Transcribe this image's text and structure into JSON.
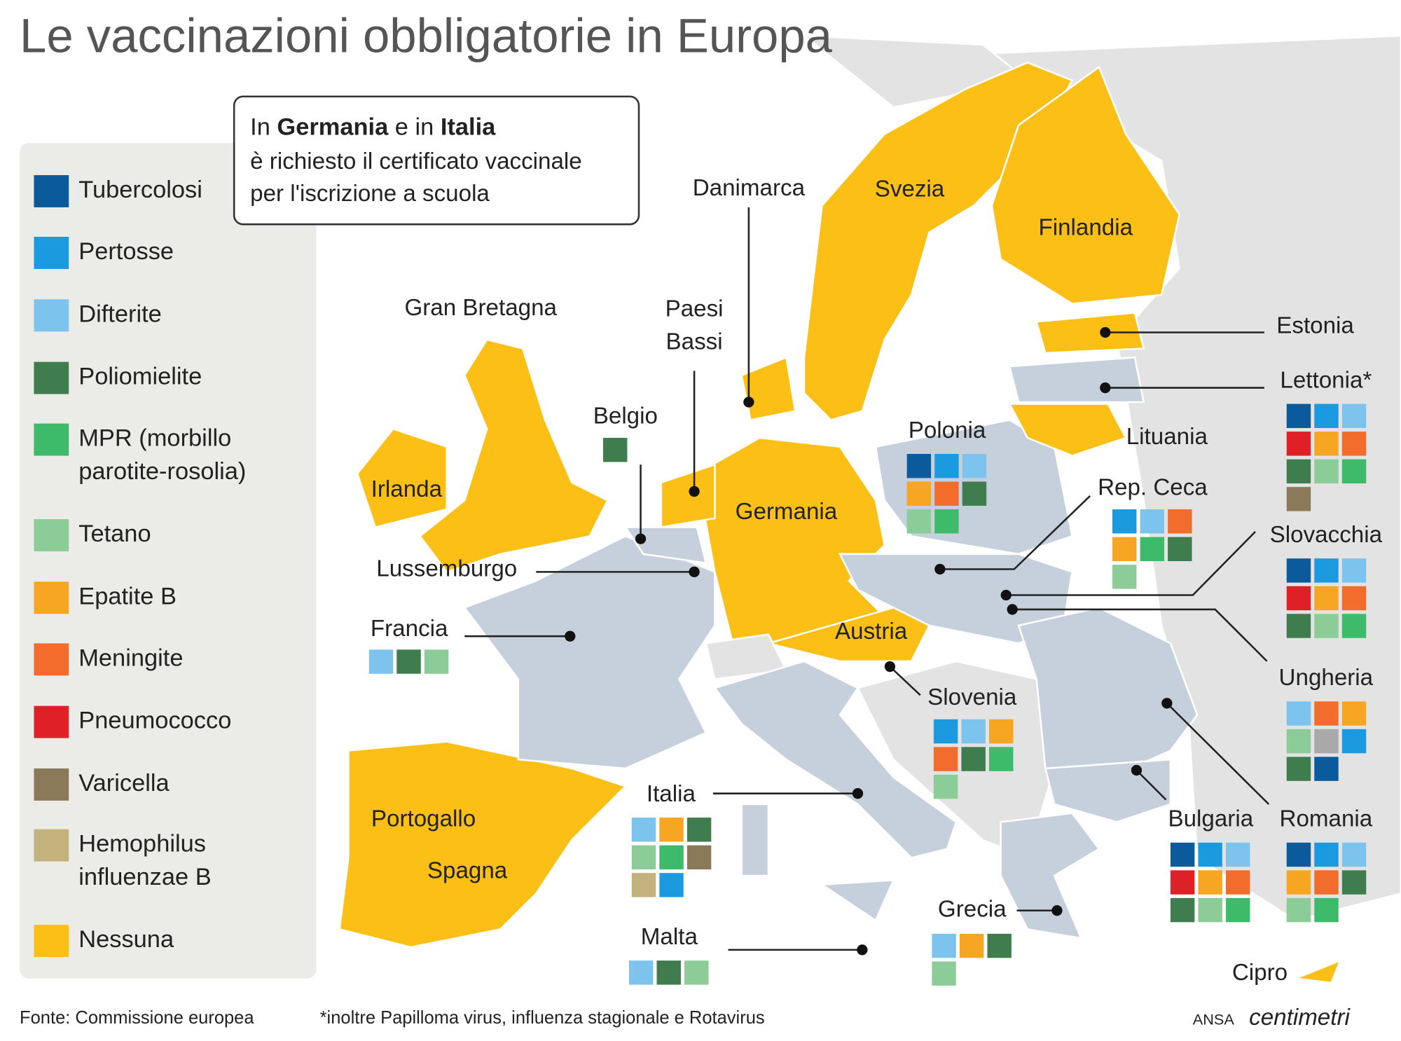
{
  "title": "Le vaccinazioni obbligatorie in Europa",
  "callout": {
    "line1": [
      "In ",
      "Germania",
      " e in ",
      "Italia"
    ],
    "line2": "è richiesto il certificato vaccinale",
    "line3": "per l'iscrizione a scuola"
  },
  "legend": [
    {
      "label": "Tubercolosi",
      "color": "#0b5a9c"
    },
    {
      "label": "Pertosse",
      "color": "#1b9ae0"
    },
    {
      "label": "Difterite",
      "color": "#7cc4ee"
    },
    {
      "label": "Poliomielite",
      "color": "#3f7d4e"
    },
    {
      "label": [
        "MPR (morbillo",
        "parotite-rosolia)"
      ],
      "color": "#3dba6a"
    },
    {
      "label": "Tetano",
      "color": "#8ccc98"
    },
    {
      "label": "Epatite B",
      "color": "#f6a623"
    },
    {
      "label": "Meningite",
      "color": "#f26c2c"
    },
    {
      "label": "Pneumococco",
      "color": "#e02027"
    },
    {
      "label": "Varicella",
      "color": "#8b7a5a"
    },
    {
      "label": [
        "Hemophilus",
        "influenzae B"
      ],
      "color": "#c4b27c"
    },
    {
      "label": "Nessuna",
      "color": "#fbbf16"
    }
  ],
  "countries": [
    {
      "name": "Svezia"
    },
    {
      "name": "Finlandia"
    },
    {
      "name": "Danimarca"
    },
    {
      "name": "Gran Bretagna"
    },
    {
      "name": [
        "Paesi",
        "Bassi"
      ]
    },
    {
      "name": "Belgio",
      "colors": [
        "#3f7d4e"
      ]
    },
    {
      "name": "Irlanda"
    },
    {
      "name": "Lussemburgo"
    },
    {
      "name": "Germania"
    },
    {
      "name": "Polonia",
      "colors": [
        "#0b5a9c",
        "#1b9ae0",
        "#7cc4ee",
        "#f6a623",
        "#f26c2c",
        "#3f7d4e",
        "#8ccc98",
        "#3dba6a"
      ]
    },
    {
      "name": "Estonia"
    },
    {
      "name": "Lettonia*",
      "colors": [
        "#0b5a9c",
        "#1b9ae0",
        "#7cc4ee",
        "#e02027",
        "#f6a623",
        "#f26c2c",
        "#3f7d4e",
        "#8ccc98",
        "#3dba6a",
        "#8b7a5a"
      ]
    },
    {
      "name": "Lituania"
    },
    {
      "name": "Rep. Ceca",
      "colors": [
        "#1b9ae0",
        "#7cc4ee",
        "#f26c2c",
        "#f6a623",
        "#3dba6a",
        "#3f7d4e",
        "#8ccc98"
      ]
    },
    {
      "name": "Slovacchia",
      "colors": [
        "#0b5a9c",
        "#1b9ae0",
        "#7cc4ee",
        "#e02027",
        "#f6a623",
        "#f26c2c",
        "#3f7d4e",
        "#8ccc98",
        "#3dba6a"
      ]
    },
    {
      "name": "Francia",
      "colors": [
        "#7cc4ee",
        "#3f7d4e",
        "#8ccc98"
      ]
    },
    {
      "name": "Austria"
    },
    {
      "name": "Ungheria",
      "colors": [
        "#7cc4ee",
        "#f26c2c",
        "#f6a623",
        "#8ccc98",
        "#a9a9a9",
        "#1b9ae0",
        "#3f7d4e",
        "#0b5a9c"
      ]
    },
    {
      "name": "Slovenia",
      "colors": [
        "#1b9ae0",
        "#7cc4ee",
        "#f6a623",
        "#f26c2c",
        "#3f7d4e",
        "#3dba6a",
        "#8ccc98"
      ]
    },
    {
      "name": "Portogallo"
    },
    {
      "name": "Spagna"
    },
    {
      "name": "Italia",
      "colors": [
        "#7cc4ee",
        "#f6a623",
        "#3f7d4e",
        "#8ccc98",
        "#3dba6a",
        "#8b7a5a",
        "#c4b27c",
        "#1b9ae0"
      ]
    },
    {
      "name": "Bulgaria",
      "colors": [
        "#0b5a9c",
        "#1b9ae0",
        "#7cc4ee",
        "#e02027",
        "#f6a623",
        "#f26c2c",
        "#3f7d4e",
        "#8ccc98",
        "#3dba6a"
      ]
    },
    {
      "name": "Romania",
      "colors": [
        "#0b5a9c",
        "#1b9ae0",
        "#7cc4ee",
        "#f6a623",
        "#f26c2c",
        "#3f7d4e",
        "#8ccc98",
        "#3dba6a"
      ]
    },
    {
      "name": "Grecia",
      "colors": [
        "#7cc4ee",
        "#f6a623",
        "#3f7d4e",
        "#8ccc98"
      ]
    },
    {
      "name": "Malta",
      "colors": [
        "#7cc4ee",
        "#3f7d4e",
        "#8ccc98"
      ]
    },
    {
      "name": "Cipro"
    }
  ],
  "footer": {
    "source": "Fonte: Commissione europea",
    "note": "*inoltre Papilloma virus, influenza stagionale e Rotavirus",
    "brand": "ANSA",
    "logo": "centimetri"
  }
}
